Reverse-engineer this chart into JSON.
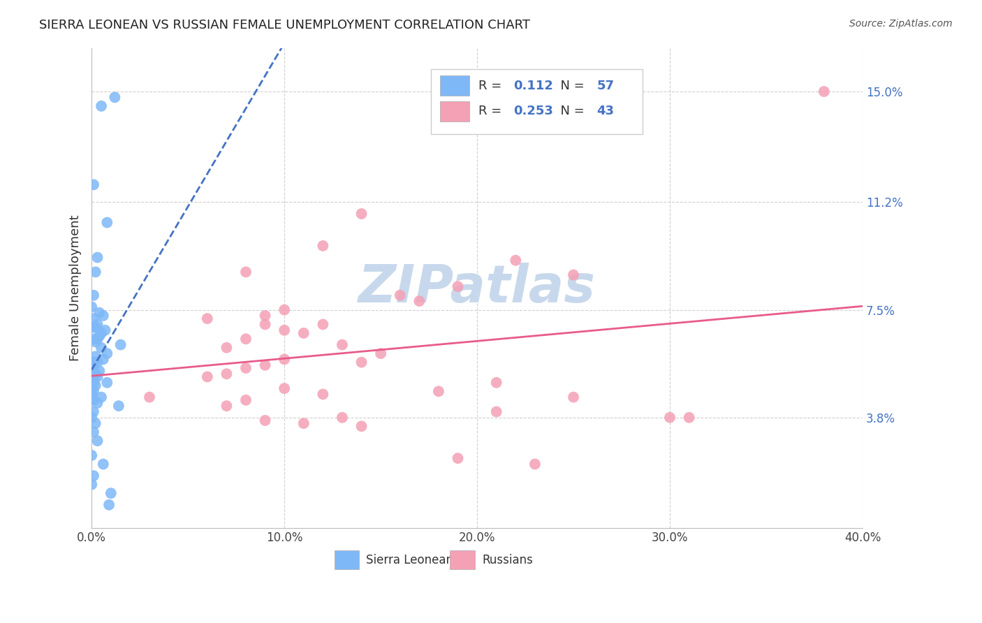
{
  "title": "SIERRA LEONEAN VS RUSSIAN FEMALE UNEMPLOYMENT CORRELATION CHART",
  "source": "Source: ZipAtlas.com",
  "ylabel": "Female Unemployment",
  "xlabel_ticks": [
    "0.0%",
    "10.0%",
    "20.0%",
    "30.0%",
    "40.0%"
  ],
  "xlabel_vals": [
    0.0,
    0.1,
    0.2,
    0.3,
    0.4
  ],
  "ylabel_ticks": [
    "3.8%",
    "7.5%",
    "11.2%",
    "15.0%"
  ],
  "ylabel_vals": [
    0.038,
    0.075,
    0.112,
    0.15
  ],
  "xlim": [
    0.0,
    0.4
  ],
  "ylim": [
    0.0,
    0.165
  ],
  "sl_R": "0.112",
  "sl_N": "57",
  "ru_R": "0.253",
  "ru_N": "43",
  "sl_color": "#7EB8F7",
  "ru_color": "#F4A0B5",
  "sl_line_color": "#4472C4",
  "ru_line_color": "#E85C8A",
  "watermark": "ZIPatlas",
  "watermark_color": "#C8D8EC",
  "background_color": "#FFFFFF",
  "grid_color": "#D0D0D0",
  "sl_x": [
    0.005,
    0.012,
    0.001,
    0.008,
    0.003,
    0.002,
    0.001,
    0.0,
    0.004,
    0.006,
    0.001,
    0.003,
    0.002,
    0.001,
    0.007,
    0.005,
    0.004,
    0.003,
    0.001,
    0.002,
    0.015,
    0.005,
    0.008,
    0.002,
    0.006,
    0.003,
    0.001,
    0.0,
    0.001,
    0.0,
    0.0,
    0.004,
    0.002,
    0.003,
    0.001,
    0.001,
    0.0,
    0.008,
    0.002,
    0.0,
    0.001,
    0.0,
    0.005,
    0.001,
    0.003,
    0.014,
    0.001,
    0.0,
    0.002,
    0.001,
    0.003,
    0.0,
    0.006,
    0.001,
    0.0,
    0.01,
    0.009
  ],
  "sl_y": [
    0.145,
    0.148,
    0.118,
    0.105,
    0.093,
    0.088,
    0.08,
    0.076,
    0.074,
    0.073,
    0.072,
    0.07,
    0.069,
    0.069,
    0.068,
    0.067,
    0.066,
    0.065,
    0.065,
    0.064,
    0.063,
    0.062,
    0.06,
    0.059,
    0.058,
    0.057,
    0.057,
    0.056,
    0.056,
    0.056,
    0.055,
    0.054,
    0.053,
    0.052,
    0.051,
    0.05,
    0.05,
    0.05,
    0.049,
    0.048,
    0.047,
    0.046,
    0.045,
    0.044,
    0.043,
    0.042,
    0.04,
    0.038,
    0.036,
    0.033,
    0.03,
    0.025,
    0.022,
    0.018,
    0.015,
    0.012,
    0.008
  ],
  "ru_x": [
    0.38,
    0.14,
    0.12,
    0.22,
    0.08,
    0.25,
    0.19,
    0.16,
    0.17,
    0.1,
    0.09,
    0.06,
    0.09,
    0.12,
    0.1,
    0.11,
    0.08,
    0.13,
    0.07,
    0.15,
    0.1,
    0.14,
    0.09,
    0.08,
    0.07,
    0.06,
    0.21,
    0.1,
    0.18,
    0.12,
    0.25,
    0.08,
    0.07,
    0.21,
    0.13,
    0.09,
    0.11,
    0.14,
    0.3,
    0.31,
    0.03,
    0.19,
    0.23
  ],
  "ru_y": [
    0.15,
    0.108,
    0.097,
    0.092,
    0.088,
    0.087,
    0.083,
    0.08,
    0.078,
    0.075,
    0.073,
    0.072,
    0.07,
    0.07,
    0.068,
    0.067,
    0.065,
    0.063,
    0.062,
    0.06,
    0.058,
    0.057,
    0.056,
    0.055,
    0.053,
    0.052,
    0.05,
    0.048,
    0.047,
    0.046,
    0.045,
    0.044,
    0.042,
    0.04,
    0.038,
    0.037,
    0.036,
    0.035,
    0.038,
    0.038,
    0.045,
    0.024,
    0.022
  ]
}
